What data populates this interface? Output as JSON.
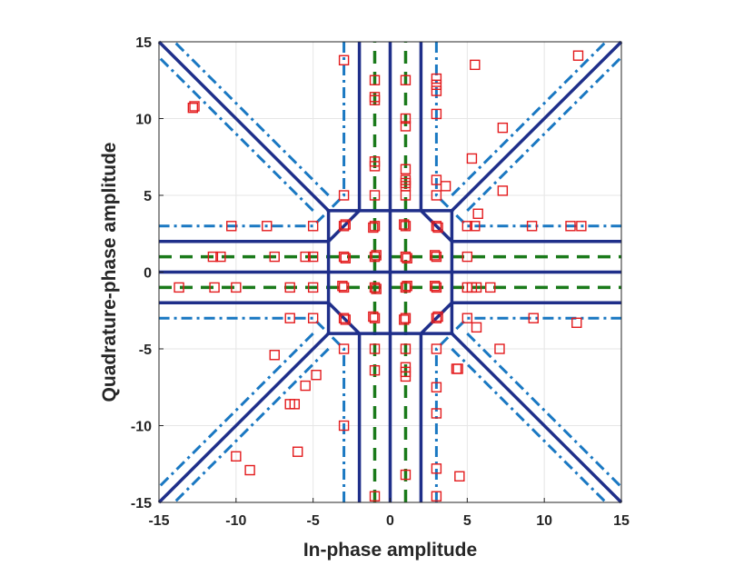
{
  "chart_data": {
    "type": "scatter",
    "xlabel": "In-phase amplitude",
    "ylabel": "Quadrature-phase amplitude",
    "xlim": [
      -15,
      15
    ],
    "ylim": [
      -15,
      15
    ],
    "xticks": [
      "-15",
      "-10",
      "-5",
      "0",
      "5",
      "10",
      "15"
    ],
    "yticks": [
      "-15",
      "-10",
      "-5",
      "0",
      "5",
      "10",
      "15"
    ],
    "grid": true,
    "legend": "none",
    "colors": {
      "solid": "#1f2f8a",
      "dashdot": "#1a78c2",
      "dashed": "#1a7a1a",
      "marker": "#e31a1c",
      "grid": "#e6e6e6",
      "axis": "#262626"
    },
    "solid_lines": [
      [
        [
          -2,
          15
        ],
        [
          -2,
          4
        ],
        [
          -4,
          2
        ],
        [
          -15,
          2
        ]
      ],
      [
        [
          2,
          15
        ],
        [
          2,
          4
        ],
        [
          4,
          2
        ],
        [
          15,
          2
        ]
      ],
      [
        [
          -2,
          -15
        ],
        [
          -2,
          -4
        ],
        [
          -4,
          -2
        ],
        [
          -15,
          -2
        ]
      ],
      [
        [
          2,
          -15
        ],
        [
          2,
          -4
        ],
        [
          4,
          -2
        ],
        [
          15,
          -2
        ]
      ],
      [
        [
          0,
          -15
        ],
        [
          0,
          15
        ]
      ],
      [
        [
          -15,
          0
        ],
        [
          15,
          0
        ]
      ],
      [
        [
          -4,
          4
        ],
        [
          -15,
          15
        ]
      ],
      [
        [
          4,
          4
        ],
        [
          15,
          15
        ]
      ],
      [
        [
          -4,
          -4
        ],
        [
          -15,
          -15
        ]
      ],
      [
        [
          4,
          -4
        ],
        [
          15,
          -15
        ]
      ],
      [
        [
          -4,
          4
        ],
        [
          4,
          4
        ]
      ],
      [
        [
          -4,
          -4
        ],
        [
          4,
          -4
        ]
      ],
      [
        [
          -4,
          -4
        ],
        [
          -4,
          4
        ]
      ],
      [
        [
          4,
          -4
        ],
        [
          4,
          4
        ]
      ]
    ],
    "dashdot_lines": [
      [
        [
          -3,
          15
        ],
        [
          -3,
          5
        ],
        [
          -5,
          3
        ],
        [
          -15,
          3
        ]
      ],
      [
        [
          3,
          15
        ],
        [
          3,
          5
        ],
        [
          5,
          3
        ],
        [
          15,
          3
        ]
      ],
      [
        [
          -3,
          -15
        ],
        [
          -3,
          -5
        ],
        [
          -5,
          -3
        ],
        [
          -15,
          -3
        ]
      ],
      [
        [
          3,
          -15
        ],
        [
          3,
          -5
        ],
        [
          5,
          -3
        ],
        [
          15,
          -3
        ]
      ],
      [
        [
          -4,
          5
        ],
        [
          -14,
          15
        ]
      ],
      [
        [
          -5,
          4
        ],
        [
          -15,
          14
        ]
      ],
      [
        [
          4,
          5
        ],
        [
          14,
          15
        ]
      ],
      [
        [
          5,
          4
        ],
        [
          15,
          14
        ]
      ],
      [
        [
          -4,
          -5
        ],
        [
          -14,
          -15
        ]
      ],
      [
        [
          -5,
          -4
        ],
        [
          -15,
          -14
        ]
      ],
      [
        [
          4,
          -5
        ],
        [
          14,
          -15
        ]
      ],
      [
        [
          5,
          -4
        ],
        [
          15,
          -14
        ]
      ]
    ],
    "dashed_lines": [
      [
        [
          -1,
          -15
        ],
        [
          -1,
          15
        ]
      ],
      [
        [
          1,
          -15
        ],
        [
          1,
          15
        ]
      ],
      [
        [
          -15,
          1
        ],
        [
          15,
          1
        ]
      ],
      [
        [
          -15,
          -1
        ],
        [
          15,
          -1
        ]
      ]
    ],
    "markers": [
      [
        -3,
        3
      ],
      [
        -1,
        3
      ],
      [
        1,
        3
      ],
      [
        3,
        3
      ],
      [
        -3,
        1
      ],
      [
        -1,
        1
      ],
      [
        1,
        1
      ],
      [
        3,
        1
      ],
      [
        -3,
        -1
      ],
      [
        -1,
        -1
      ],
      [
        1,
        -1
      ],
      [
        3,
        -1
      ],
      [
        -3,
        -3
      ],
      [
        -1,
        -3
      ],
      [
        1,
        -3
      ],
      [
        3,
        -3
      ],
      [
        -2.9,
        3.1
      ],
      [
        -1.1,
        2.9
      ],
      [
        0.9,
        3.1
      ],
      [
        3.1,
        2.9
      ],
      [
        -2.9,
        0.9
      ],
      [
        -0.9,
        1.1
      ],
      [
        1.1,
        0.9
      ],
      [
        2.9,
        1.1
      ],
      [
        -3.1,
        -0.9
      ],
      [
        -0.9,
        -1.1
      ],
      [
        1.1,
        -0.9
      ],
      [
        2.9,
        -0.9
      ],
      [
        -2.9,
        -3.1
      ],
      [
        -1.1,
        -2.9
      ],
      [
        0.9,
        -3.1
      ],
      [
        3.1,
        -2.9
      ],
      [
        -3,
        13.8
      ],
      [
        -3,
        5
      ],
      [
        -1,
        12.5
      ],
      [
        -1,
        11.4
      ],
      [
        -1,
        11.2
      ],
      [
        -1,
        7.2
      ],
      [
        -1,
        6.9
      ],
      [
        -1,
        5
      ],
      [
        1,
        12.5
      ],
      [
        1,
        10
      ],
      [
        1,
        9.5
      ],
      [
        1,
        6.7
      ],
      [
        1,
        6
      ],
      [
        1,
        5.8
      ],
      [
        1,
        5.6
      ],
      [
        1,
        5
      ],
      [
        3,
        12.6
      ],
      [
        3,
        12.2
      ],
      [
        3,
        11.8
      ],
      [
        3,
        10.3
      ],
      [
        3,
        6
      ],
      [
        3,
        5
      ],
      [
        3.6,
        5.6
      ],
      [
        5.5,
        13.5
      ],
      [
        12.2,
        14.1
      ],
      [
        7.3,
        9.4
      ],
      [
        5.3,
        7.4
      ],
      [
        7.3,
        5.3
      ],
      [
        5.7,
        3.8
      ],
      [
        5,
        3
      ],
      [
        5.5,
        3
      ],
      [
        9.2,
        3
      ],
      [
        11.7,
        3
      ],
      [
        12.4,
        3
      ],
      [
        -5,
        3
      ],
      [
        -8,
        3
      ],
      [
        -10.3,
        3
      ],
      [
        5,
        1
      ],
      [
        -5,
        1
      ],
      [
        -5.5,
        1
      ],
      [
        -7.5,
        1
      ],
      [
        -11.5,
        1
      ],
      [
        -11,
        1
      ],
      [
        -13.7,
        -1
      ],
      [
        -11.4,
        -1
      ],
      [
        -10,
        -1
      ],
      [
        -6.5,
        -1
      ],
      [
        -5,
        -1
      ],
      [
        5,
        -1
      ],
      [
        5.3,
        -1
      ],
      [
        5.6,
        -1
      ],
      [
        6.5,
        -1
      ],
      [
        -6.5,
        -3
      ],
      [
        -5,
        -3
      ],
      [
        5,
        -3
      ],
      [
        9.3,
        -3
      ],
      [
        12.1,
        -3.3
      ],
      [
        5.6,
        -3.6
      ],
      [
        7.1,
        -5
      ],
      [
        -12.8,
        10.7
      ],
      [
        -12.7,
        10.8
      ],
      [
        -3,
        -5
      ],
      [
        -3,
        -10
      ],
      [
        -1,
        -5
      ],
      [
        -1,
        -6.4
      ],
      [
        -1,
        -14.6
      ],
      [
        1,
        -5
      ],
      [
        1,
        -6.2
      ],
      [
        1,
        -6.5
      ],
      [
        1,
        -6.8
      ],
      [
        1,
        -13.2
      ],
      [
        3,
        -5
      ],
      [
        3,
        -7.5
      ],
      [
        3,
        -9.2
      ],
      [
        3,
        -12.8
      ],
      [
        3,
        -14.6
      ],
      [
        4.3,
        -6.3
      ],
      [
        4.4,
        -6.3
      ],
      [
        4.5,
        -13.3
      ],
      [
        -7.5,
        -5.4
      ],
      [
        -4.8,
        -6.7
      ],
      [
        -5.5,
        -7.4
      ],
      [
        -6.5,
        -8.6
      ],
      [
        -6.2,
        -8.6
      ],
      [
        -6,
        -11.7
      ],
      [
        -10,
        -12
      ],
      [
        -9.1,
        -12.9
      ]
    ]
  }
}
